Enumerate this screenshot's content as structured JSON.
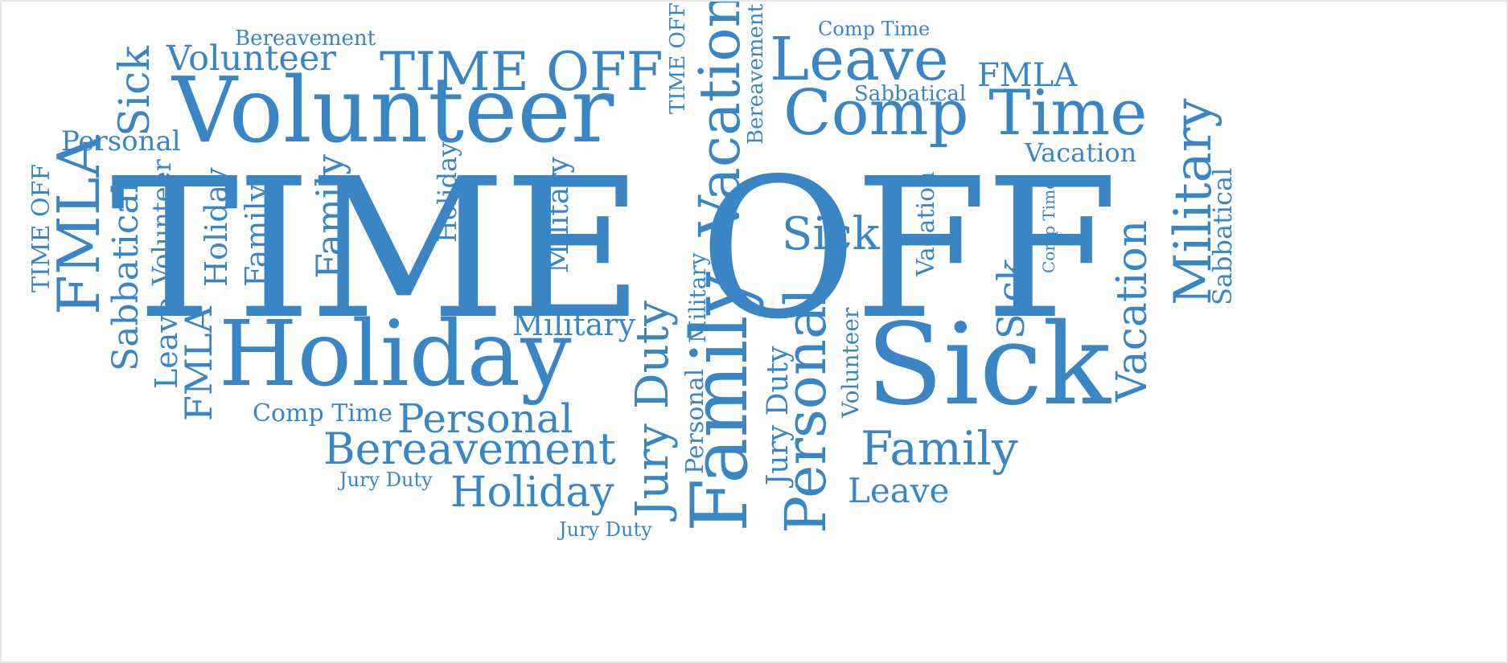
{
  "theme": {
    "word_color": "#3a86c5",
    "background": "#ffffff"
  },
  "words": [
    "TIME OFF",
    "Volunteer",
    "Holiday",
    "Sick",
    "Comp Time",
    "Leave",
    "TIME OFF",
    "Volunteer",
    "Bereavement",
    "Personal",
    "Bereavement",
    "Comp Time",
    "FMLA",
    "Sabbatical",
    "Vacation",
    "Personal",
    "Family",
    "Leave",
    "Holiday",
    "Military",
    "Comp Time",
    "Jury Duty",
    "Jury Duty",
    "Sick",
    "Sick",
    "Military",
    "Vacation",
    "Family",
    "Personal",
    "Vacation",
    "Sabbatical",
    "FMLA",
    "Sabbatical",
    "Leave",
    "FMLA",
    "TIME OFF",
    "Volunteer",
    "Holiday",
    "Family",
    "Family",
    "Holiday",
    "Military",
    "Bereavement",
    "TIME OFF",
    "Vacation",
    "Comp Time",
    "Sick",
    "Jury Duty",
    "Jury Duty",
    "Personal",
    "Military",
    "Volunteer"
  ]
}
